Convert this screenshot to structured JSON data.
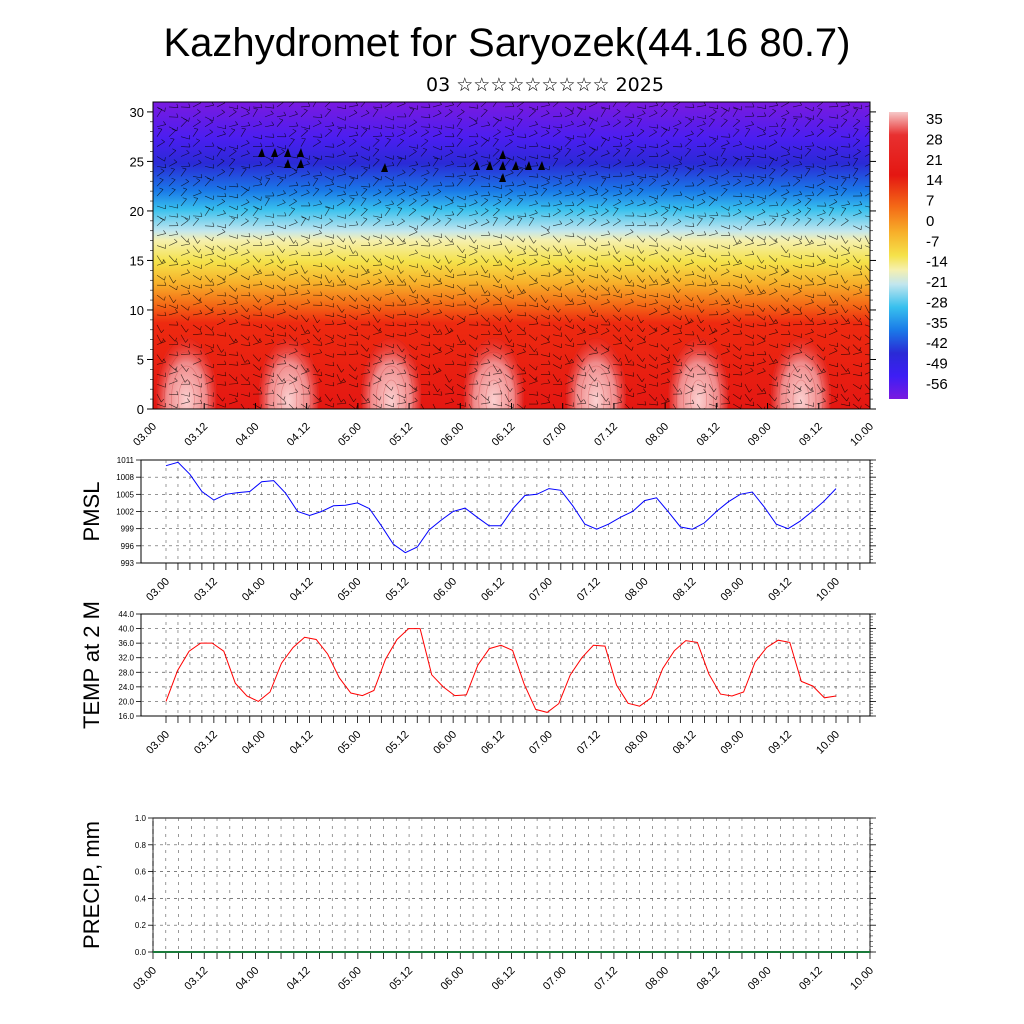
{
  "title": "Kazhydromet for Saryozek(44.16 80.7)",
  "subtitle": "03 ☆☆☆☆☆☆☆☆☆ 2025",
  "chart_data": [
    {
      "type": "heatmap",
      "name": "vertical-profile",
      "x_tick_labels": [
        "03.00",
        "03.12",
        "04.00",
        "04.12",
        "05.00",
        "05.12",
        "06.00",
        "06.12",
        "07.00",
        "07.12",
        "08.00",
        "08.12",
        "09.00",
        "09.12",
        "10.00"
      ],
      "y_ticks": [
        0,
        5,
        10,
        15,
        20,
        25,
        30
      ],
      "ylim": [
        0,
        31
      ],
      "colorbar_labels": [
        "35",
        "28",
        "21",
        "14",
        "7",
        "0",
        "-7",
        "-14",
        "-21",
        "-28",
        "-35",
        "-42",
        "-49",
        "-56"
      ],
      "colorbar_range": [
        -60,
        38
      ],
      "colors": [
        "#7a1ae0",
        "#3d1ef5",
        "#2b2ad8",
        "#1a6fe8",
        "#2ab8ee",
        "#a8dff0",
        "#f5f0b0",
        "#f5e64a",
        "#f7b02a",
        "#f46a16",
        "#ee2a10",
        "#e41712",
        "#f2a6a6"
      ]
    },
    {
      "type": "line",
      "ylabel": "PMSL",
      "color": "#0000ff",
      "ylim": [
        993,
        1011
      ],
      "y_ticks": [
        993,
        996,
        999,
        1002,
        1005,
        1008,
        1011
      ],
      "x_tick_labels": [
        "03.00",
        "03.12",
        "04.00",
        "04.12",
        "05.00",
        "05.12",
        "06.00",
        "06.12",
        "07.00",
        "07.12",
        "08.00",
        "08.12",
        "09.00",
        "09.12",
        "10.00"
      ],
      "values": [
        1010,
        1010.6,
        1008.5,
        1005.5,
        1004,
        1005,
        1005.3,
        1005.5,
        1007.2,
        1007.4,
        1005.2,
        1002,
        1001.3,
        1002,
        1003,
        1003.1,
        1003.5,
        1002.5,
        999.5,
        996.3,
        994.8,
        995.8,
        998.8,
        1000.5,
        1002,
        1002.6,
        1001,
        999.5,
        999.5,
        1002.5,
        1004.8,
        1005,
        1006,
        1005.7,
        1003,
        999.8,
        998.9,
        999.8,
        1001,
        1002,
        1003.9,
        1004.4,
        1001.9,
        999.3,
        998.9,
        1000,
        1002,
        1003.7,
        1005,
        1005.4,
        1002.8,
        999.8,
        999,
        1000.3,
        1002,
        1003.8,
        1006
      ]
    },
    {
      "type": "line",
      "ylabel": "TEMP at 2 M",
      "color": "#ff0000",
      "ylim": [
        16,
        44
      ],
      "y_ticks": [
        "16.0",
        "20.0",
        "24.0",
        "28.0",
        "32.0",
        "36.0",
        "40.0",
        "44.0"
      ],
      "x_tick_labels": [
        "03.00",
        "03.12",
        "04.00",
        "04.12",
        "05.00",
        "05.12",
        "06.00",
        "06.12",
        "07.00",
        "07.12",
        "08.00",
        "08.12",
        "09.00",
        "09.12",
        "10.00"
      ],
      "values": [
        20,
        28.5,
        33.8,
        36,
        36,
        33.8,
        25,
        21.5,
        20,
        22.6,
        30.5,
        34.8,
        37.6,
        37,
        33,
        26.5,
        22.3,
        21.6,
        23,
        31.6,
        37,
        40,
        40,
        27.3,
        24,
        21.6,
        21.8,
        30,
        34.5,
        35.4,
        34,
        24.8,
        17.8,
        17,
        19.4,
        27.3,
        32,
        35.4,
        35.2,
        24.5,
        19.5,
        18.7,
        21,
        29,
        33.9,
        36.7,
        36.2,
        27.5,
        22,
        21.5,
        22.6,
        30.8,
        34.8,
        36.8,
        36.2,
        25.5,
        24.2,
        21,
        21.5
      ]
    },
    {
      "type": "bar",
      "ylabel": "PRECIP, mm",
      "ylim": [
        0,
        1
      ],
      "y_ticks": [
        "0.0",
        "0.2",
        "0.4",
        "0.6",
        "0.8",
        "1.0"
      ],
      "x_tick_labels": [
        "03.00",
        "03.12",
        "04.00",
        "04.12",
        "05.00",
        "05.12",
        "06.00",
        "06.12",
        "07.00",
        "07.12",
        "08.00",
        "08.12",
        "09.00",
        "09.12",
        "10.00"
      ],
      "values": []
    }
  ]
}
